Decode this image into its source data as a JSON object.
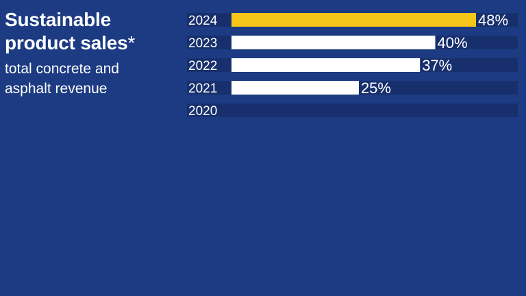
{
  "header": {
    "title_line1": "Sustainable",
    "title_line2": "product sales",
    "title_mark": "*",
    "subtitle_line1": "total concrete and",
    "subtitle_line2": "asphalt revenue"
  },
  "colors": {
    "background": "#1c3b82",
    "row_track": "#17306d",
    "bar_default": "#ffffff",
    "bar_highlight": "#f5c518"
  },
  "chart_data": {
    "type": "bar",
    "orientation": "horizontal",
    "title": "Sustainable product sales*",
    "subtitle": "total concrete and asphalt revenue",
    "categories": [
      "2024",
      "2023",
      "2022",
      "2021",
      "2020"
    ],
    "values": [
      48,
      40,
      37,
      25,
      null
    ],
    "value_labels": [
      "48%",
      "40%",
      "37%",
      "25%",
      ""
    ],
    "highlight": [
      "2024"
    ],
    "xlim": [
      0,
      100
    ],
    "grid": false,
    "legend": "none"
  }
}
